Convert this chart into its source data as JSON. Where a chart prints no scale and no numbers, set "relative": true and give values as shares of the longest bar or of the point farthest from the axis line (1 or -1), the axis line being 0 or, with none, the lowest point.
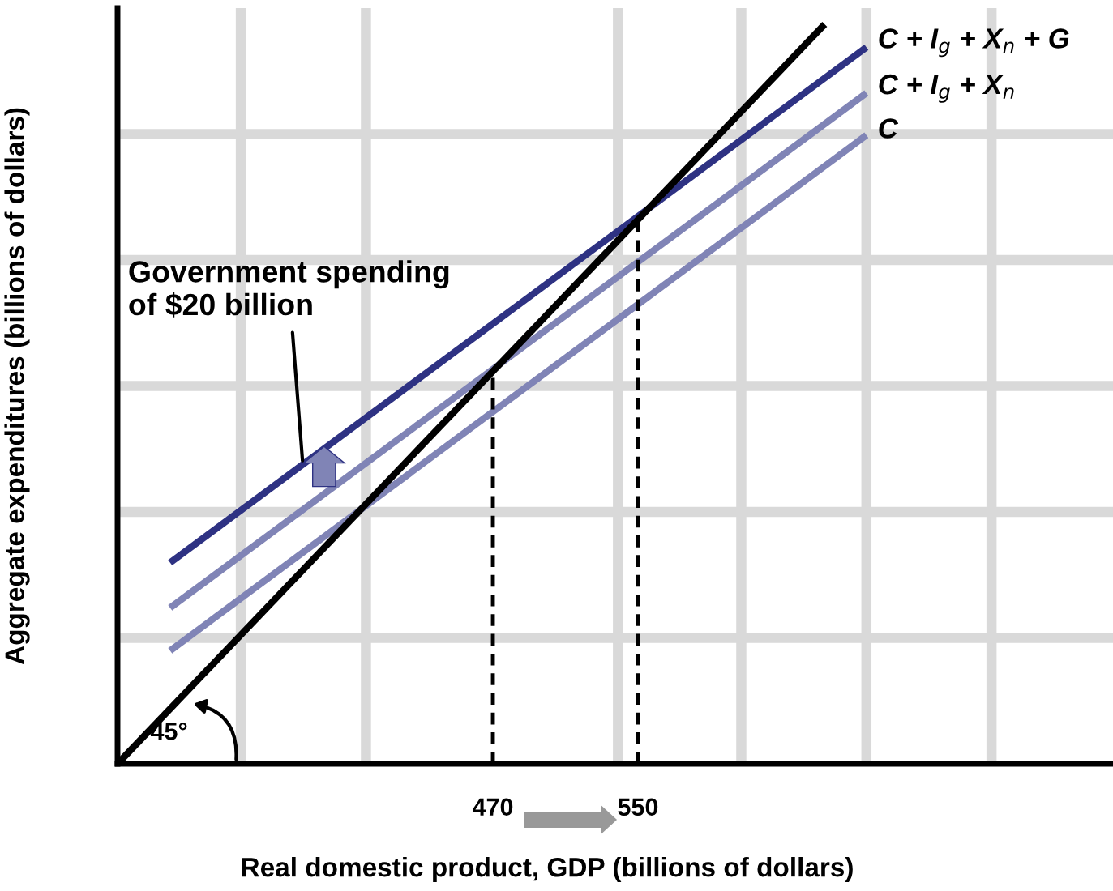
{
  "chart_data": {
    "type": "line",
    "relative": true,
    "xlabel": "Real domestic product, GDP (billions of dollars)",
    "ylabel": "Aggregate expenditures (billions of dollars)",
    "xlim": [
      263,
      812
    ],
    "xticks": [
      {
        "value": 331,
        "label": null
      },
      {
        "value": 400,
        "label": null
      },
      470,
      {
        "value": 539,
        "label": null
      },
      550,
      {
        "value": 607,
        "label": null
      },
      {
        "value": 676,
        "label": null
      },
      {
        "value": 745,
        "label": null
      }
    ],
    "grid": true,
    "legend": false,
    "series": [
      {
        "color": "#000000",
        "x": [
          263,
          653
        ],
        "values": [
          0,
          1
        ]
      },
      {
        "name": "C",
        "color": "#8084b6",
        "x": [
          292,
          676
        ],
        "values": [
          0.153,
          0.85
        ]
      },
      {
        "name": "C + I$_{g}$ + X$_{n}$",
        "color": "#8084b6",
        "x": [
          292,
          676
        ],
        "values": [
          0.211,
          0.907
        ]
      },
      {
        "name": "C + I$_{g}$ + X$_{n}$ + G",
        "color": "#2e3283",
        "x": [
          292,
          676
        ],
        "values": [
          0.272,
          0.969
        ]
      },
      {
        "color": "#000000",
        "line_style": "dashed",
        "x": [
          470,
          470
        ],
        "values": [
          0,
          0.531
        ]
      },
      {
        "color": "#000000",
        "line_style": "dashed",
        "x": [
          550,
          550
        ],
        "values": [
          0,
          0.736
        ]
      }
    ],
    "annotations": [
      {
        "text": "Government spending\nof $20 billion",
        "x": 365,
        "y": 0.41
      },
      "45°"
    ]
  }
}
